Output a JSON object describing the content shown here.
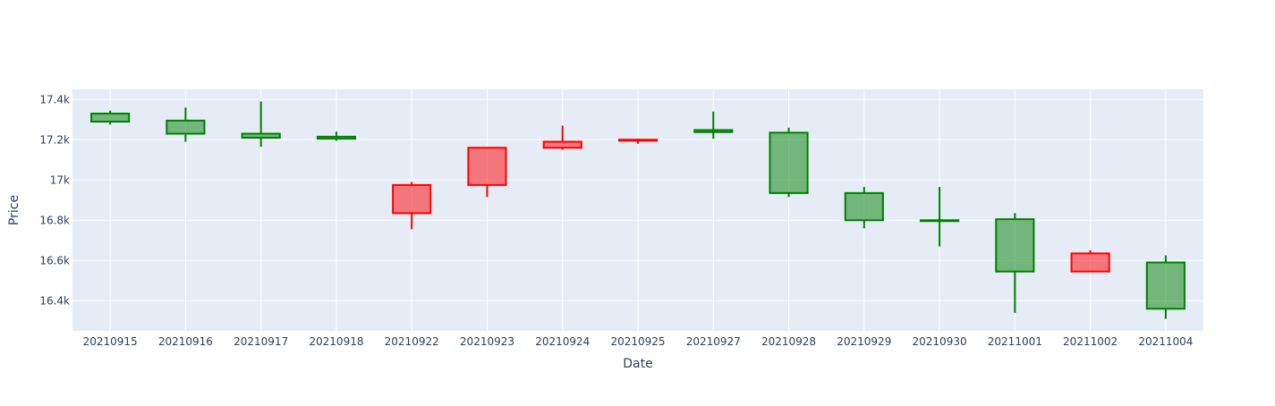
{
  "chart_data": {
    "type": "candlestick",
    "xlabel": "Date",
    "ylabel": "Price",
    "ylim": [
      16250,
      17450
    ],
    "yticks": [
      {
        "value": 16400,
        "label": "16.4k"
      },
      {
        "value": 16600,
        "label": "16.6k"
      },
      {
        "value": 16800,
        "label": "16.8k"
      },
      {
        "value": 17000,
        "label": "17k"
      },
      {
        "value": 17200,
        "label": "17.2k"
      },
      {
        "value": 17400,
        "label": "17.4k"
      }
    ],
    "categories": [
      "20210915",
      "20210916",
      "20210917",
      "20210918",
      "20210922",
      "20210923",
      "20210924",
      "20210925",
      "20210927",
      "20210928",
      "20210929",
      "20210930",
      "20211001",
      "20211002",
      "20211004"
    ],
    "open": [
      17290,
      17230,
      17210,
      17205,
      16975,
      17160,
      17190,
      17200,
      17238,
      16935,
      16800,
      16800,
      16545,
      16635,
      16360
    ],
    "high": [
      17345,
      17360,
      17390,
      17240,
      16990,
      17160,
      17270,
      17205,
      17340,
      17260,
      16965,
      16965,
      16835,
      16650,
      16625
    ],
    "low": [
      17275,
      17190,
      17165,
      17195,
      16755,
      16915,
      17150,
      17180,
      17205,
      16915,
      16760,
      16670,
      16340,
      16545,
      16310
    ],
    "close": [
      17330,
      17295,
      17230,
      17215,
      16835,
      16975,
      17160,
      17195,
      17248,
      17235,
      16935,
      16800,
      16805,
      16545,
      16590
    ],
    "grid": true,
    "colors": {
      "increasing_line": "#008000",
      "increasing_fill": "rgba(0,128,0,0.5)",
      "decreasing_line": "#ff0000",
      "decreasing_fill": "rgba(255,0,0,0.5)",
      "plot_bg": "#e5ecf6",
      "grid": "#ffffff",
      "text": "#2a3f5f"
    }
  }
}
